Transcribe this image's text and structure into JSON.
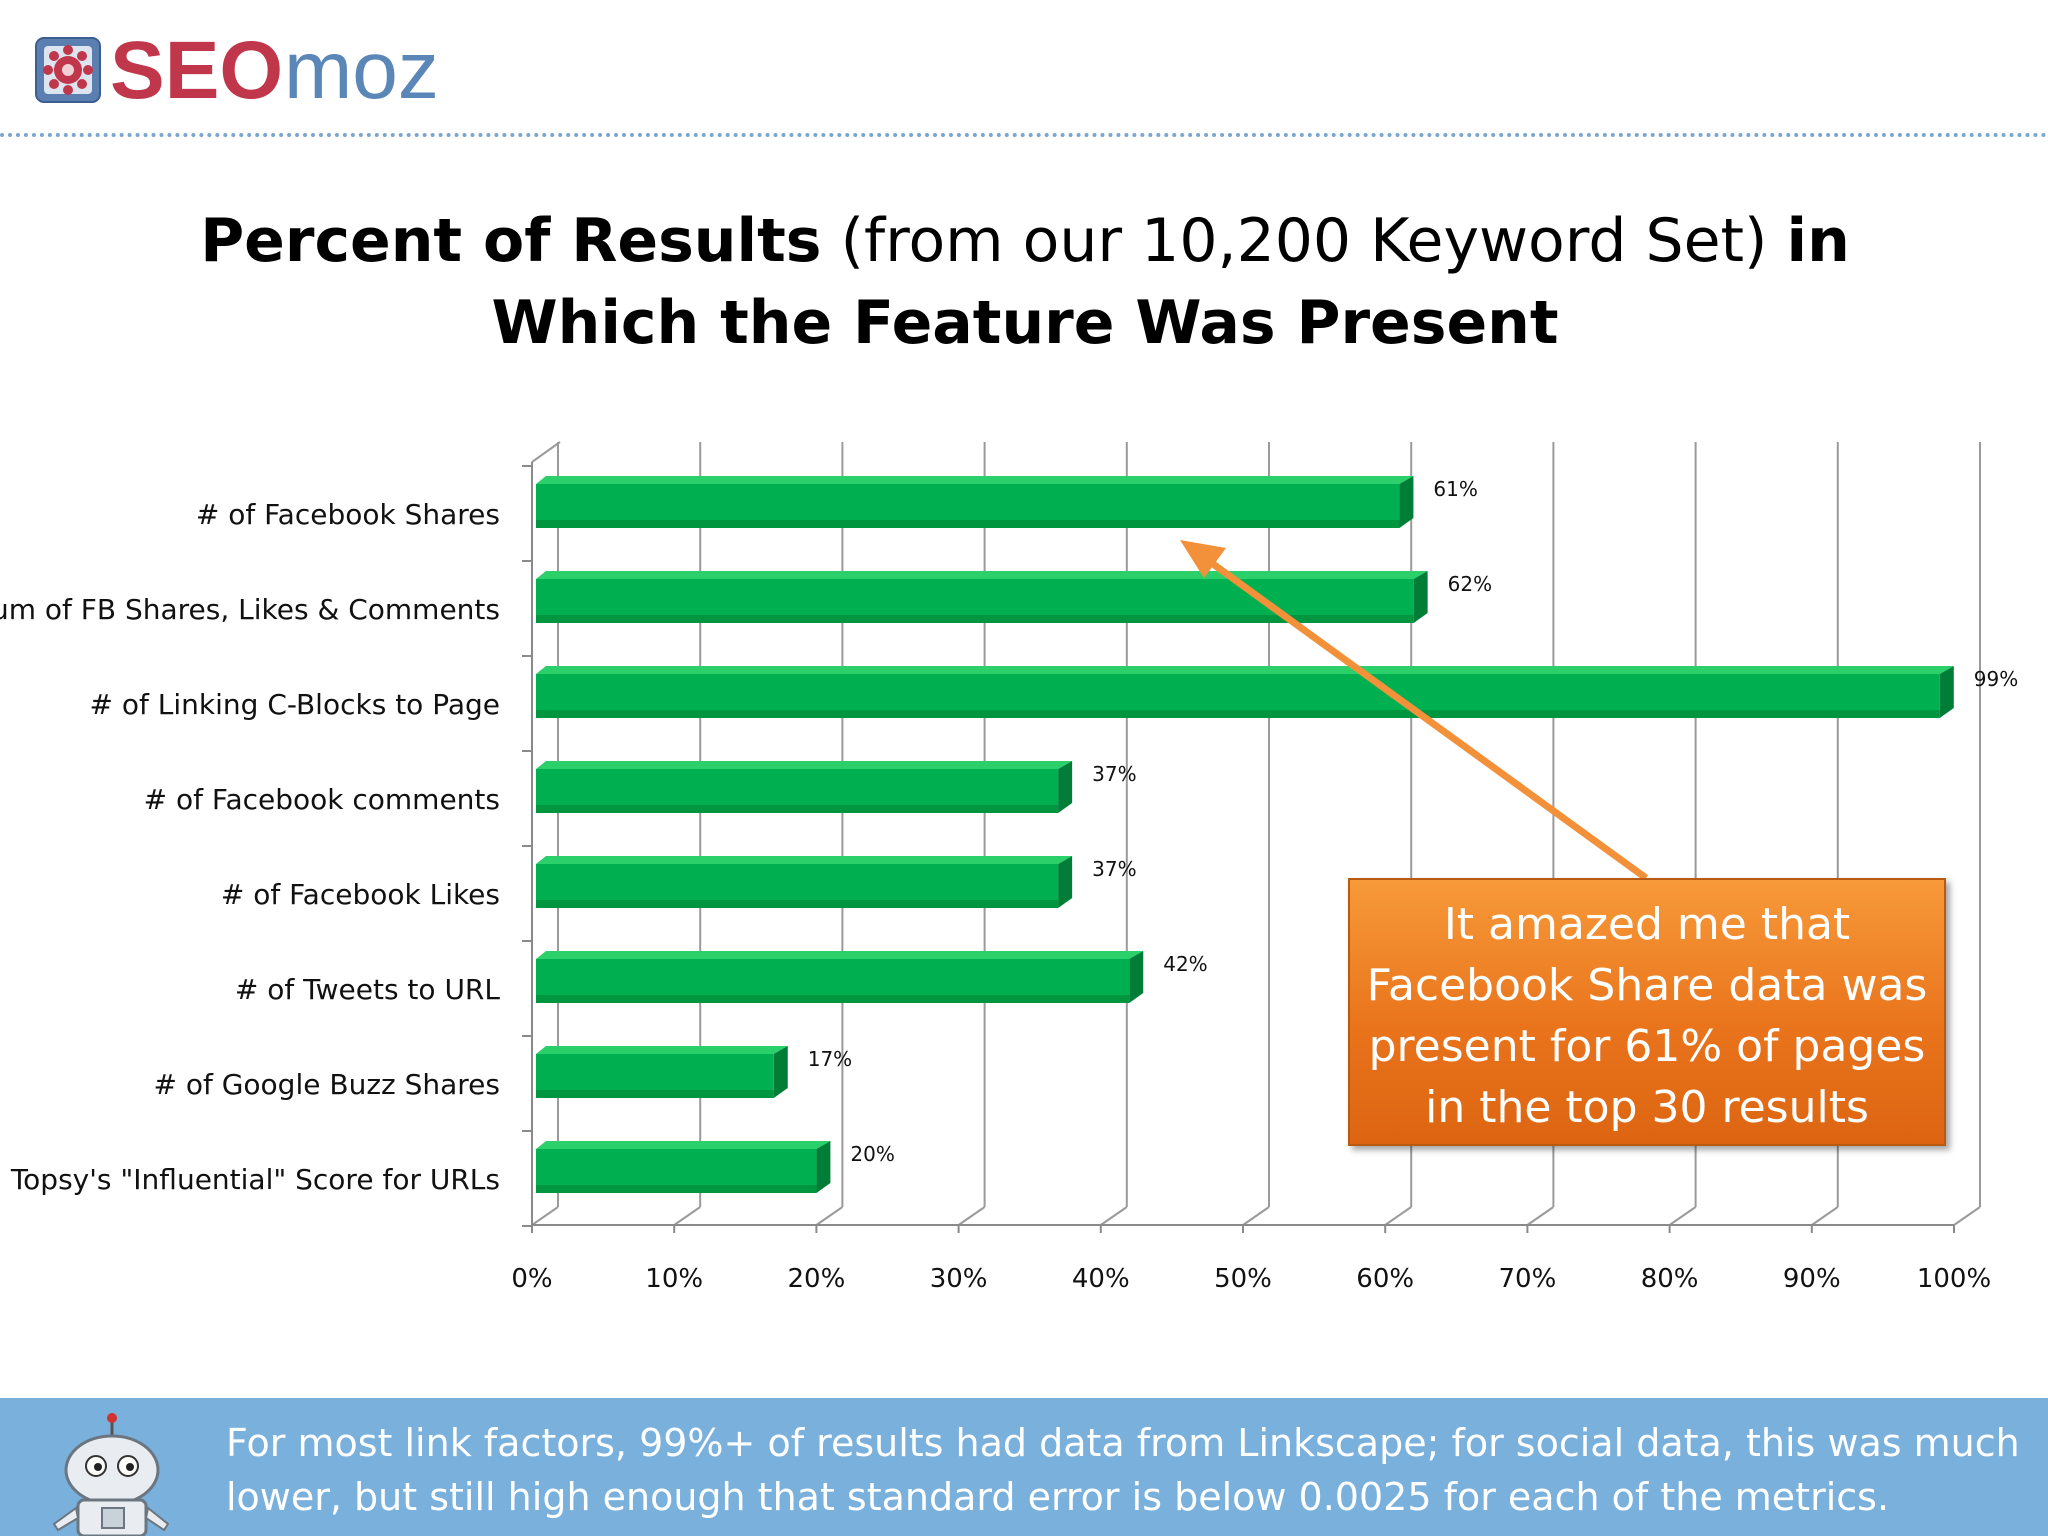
{
  "header": {
    "logo_text_bold": "SEO",
    "logo_text_light": "moz"
  },
  "title": {
    "part1_bold": "Percent of Results",
    "part2_normal": " (from our 10,200 Keyword Set) ",
    "part3_bold": "in Which the Feature Was Present"
  },
  "chart_data": {
    "type": "bar",
    "orientation": "horizontal",
    "categories": [
      "# of Facebook Shares",
      "Sum of FB Shares, Likes & Comments",
      "# of Linking C-Blocks to Page",
      "# of Facebook comments",
      "# of Facebook Likes",
      "# of Tweets to URL",
      "# of Google Buzz Shares",
      "Topsy's \"Influential\" Score for URLs"
    ],
    "values": [
      61,
      62,
      99,
      37,
      37,
      42,
      17,
      20
    ],
    "value_labels": [
      "61%",
      "62%",
      "99%",
      "37%",
      "37%",
      "42%",
      "17%",
      "20%"
    ],
    "xlim": [
      0,
      100
    ],
    "x_ticks": [
      "0%",
      "10%",
      "20%",
      "30%",
      "40%",
      "50%",
      "60%",
      "70%",
      "80%",
      "90%",
      "100%"
    ],
    "grid": true,
    "bar_color": "#00b050"
  },
  "callout": {
    "text": "It amazed me that Facebook Share data was present for 61% of pages in the top 30 results",
    "lines": [
      "It amazed me that",
      "Facebook Share data was",
      "present for 61% of pages",
      "in the top 30 results"
    ],
    "color": "#ea7a20",
    "points_to_category": "# of Facebook Shares"
  },
  "footer": {
    "lines": [
      "For most link factors, 99%+ of results had data from Linkscape; for social data, this was much",
      "lower, but still high enough that standard error is below 0.0025 for each of the metrics."
    ],
    "background": "#7ab0dc"
  }
}
